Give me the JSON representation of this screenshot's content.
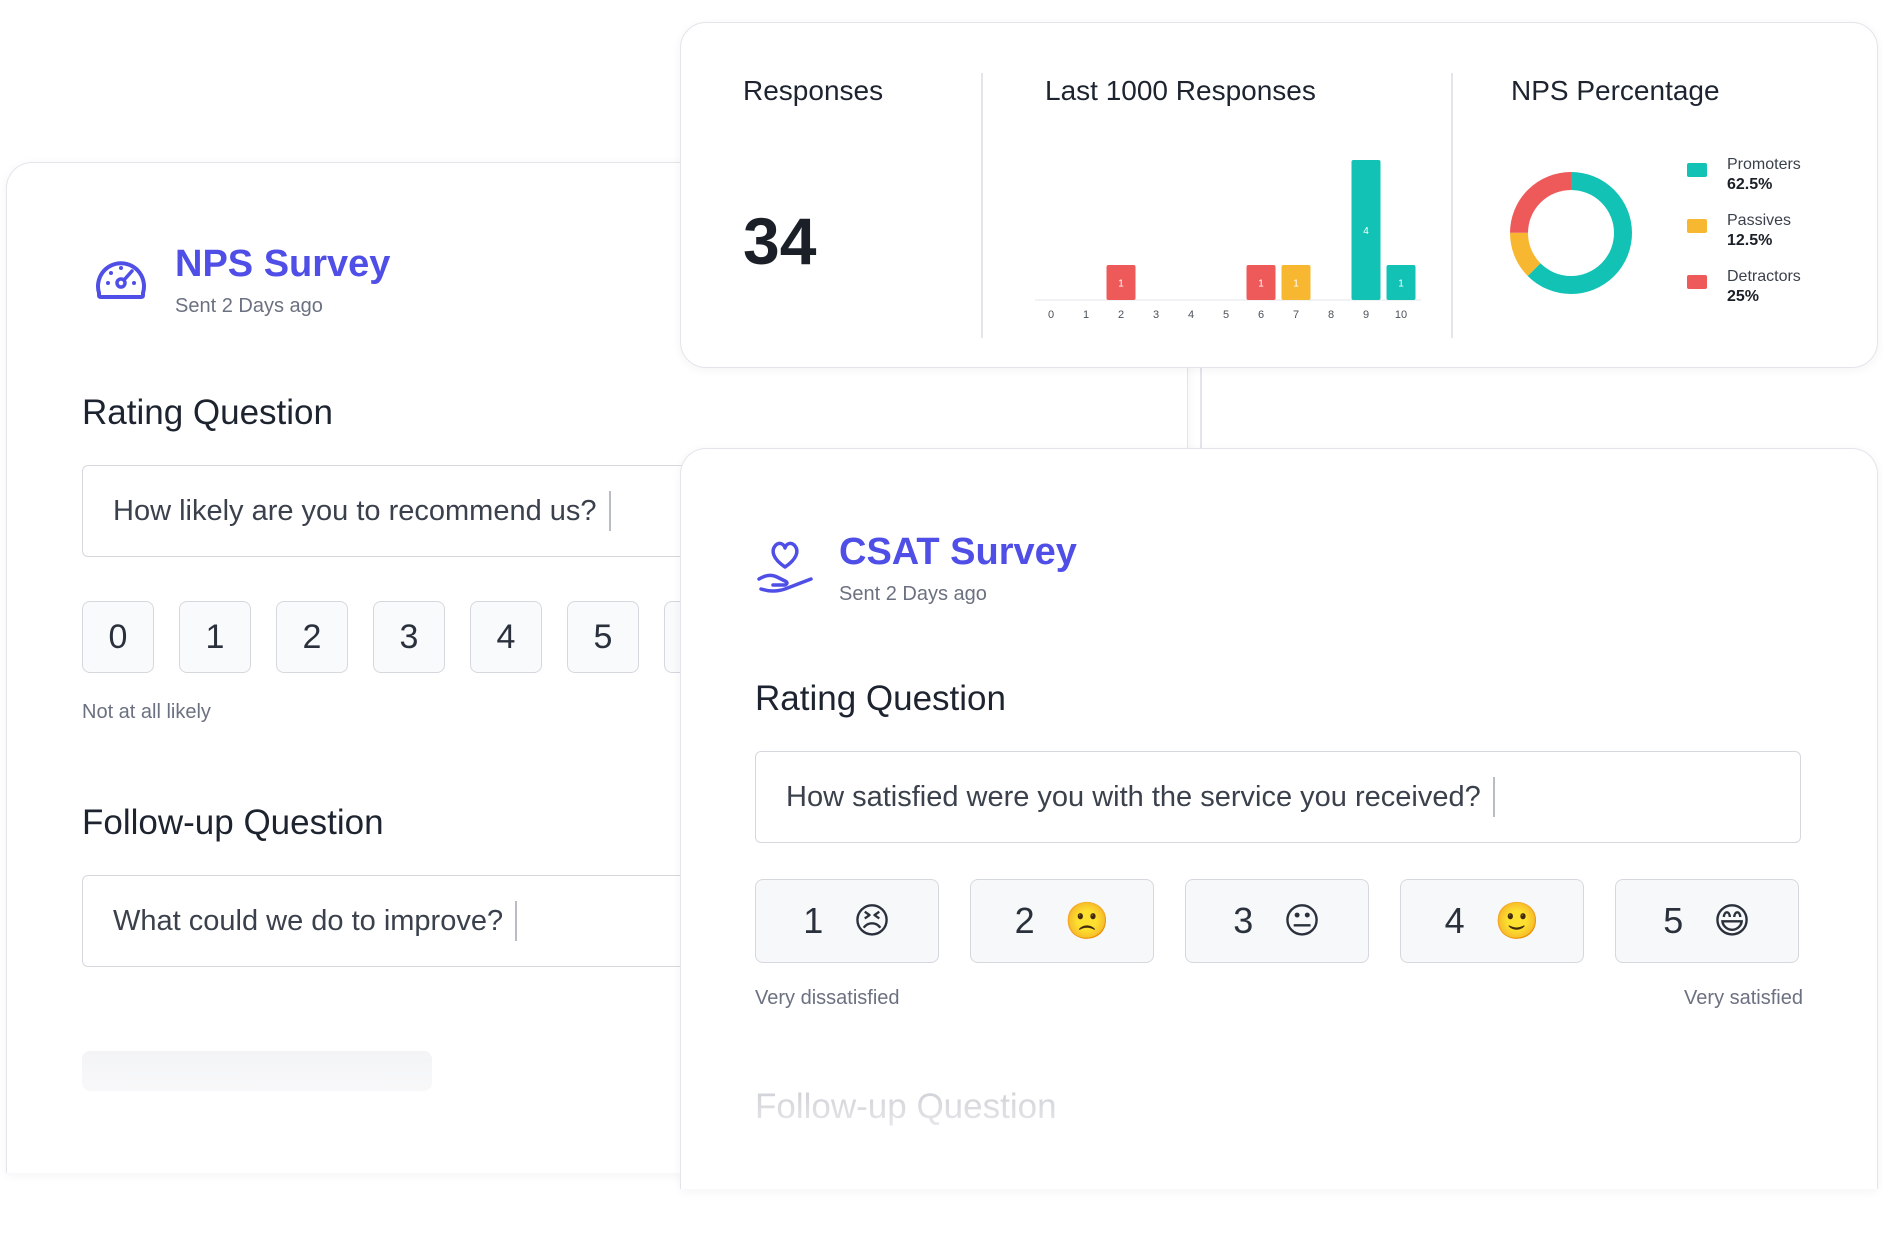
{
  "nps_survey": {
    "title": "NPS Survey",
    "subtitle": "Sent 2 Days ago",
    "icon": "speedometer-icon",
    "rating_section_title": "Rating Question",
    "rating_question": "How likely are you to recommend us?",
    "scale": [
      "0",
      "1",
      "2",
      "3",
      "4",
      "5"
    ],
    "low_label": "Not at all likely",
    "followup_section_title": "Follow-up Question",
    "followup_question": "What could we do to improve?"
  },
  "stats": {
    "responses_title": "Responses",
    "responses_count": "34",
    "histogram_title": "Last 1000 Responses",
    "nps_title": "NPS Percentage",
    "legend": [
      {
        "name": "Promoters",
        "value": "62.5%",
        "color": "#12c2b5"
      },
      {
        "name": "Passives",
        "value": "12.5%",
        "color": "#f7b731"
      },
      {
        "name": "Detractors",
        "value": "25%",
        "color": "#ee5a5a"
      }
    ]
  },
  "chart_data": [
    {
      "type": "bar",
      "title": "Last 1000 Responses",
      "categories": [
        "0",
        "1",
        "2",
        "3",
        "4",
        "5",
        "6",
        "7",
        "8",
        "9",
        "10"
      ],
      "values": [
        0,
        0,
        1,
        0,
        0,
        0,
        1,
        1,
        0,
        4,
        1
      ],
      "colors": [
        "#ee5a5a",
        "#ee5a5a",
        "#ee5a5a",
        "#ee5a5a",
        "#ee5a5a",
        "#ee5a5a",
        "#ee5a5a",
        "#f7b731",
        "#f7b731",
        "#12c2b5",
        "#12c2b5"
      ],
      "ylim": [
        0,
        4
      ]
    },
    {
      "type": "pie",
      "title": "NPS Percentage",
      "labels": [
        "Promoters",
        "Passives",
        "Detractors"
      ],
      "values": [
        62.5,
        12.5,
        25
      ],
      "colors": [
        "#12c2b5",
        "#f7b731",
        "#ee5a5a"
      ]
    }
  ],
  "csat_survey": {
    "title": "CSAT Survey",
    "subtitle": "Sent 2 Days ago",
    "icon": "heart-hand-icon",
    "rating_section_title": "Rating Question",
    "rating_question": "How satisfied were you with the service you received?",
    "options": [
      {
        "value": "1",
        "emoji": "😣"
      },
      {
        "value": "2",
        "emoji": "🙁"
      },
      {
        "value": "3",
        "emoji": "😐"
      },
      {
        "value": "4",
        "emoji": "🙂"
      },
      {
        "value": "5",
        "emoji": "😄"
      }
    ],
    "low_label": "Very dissatisfied",
    "high_label": "Very satisfied",
    "followup_section_title": "Follow-up Question"
  }
}
